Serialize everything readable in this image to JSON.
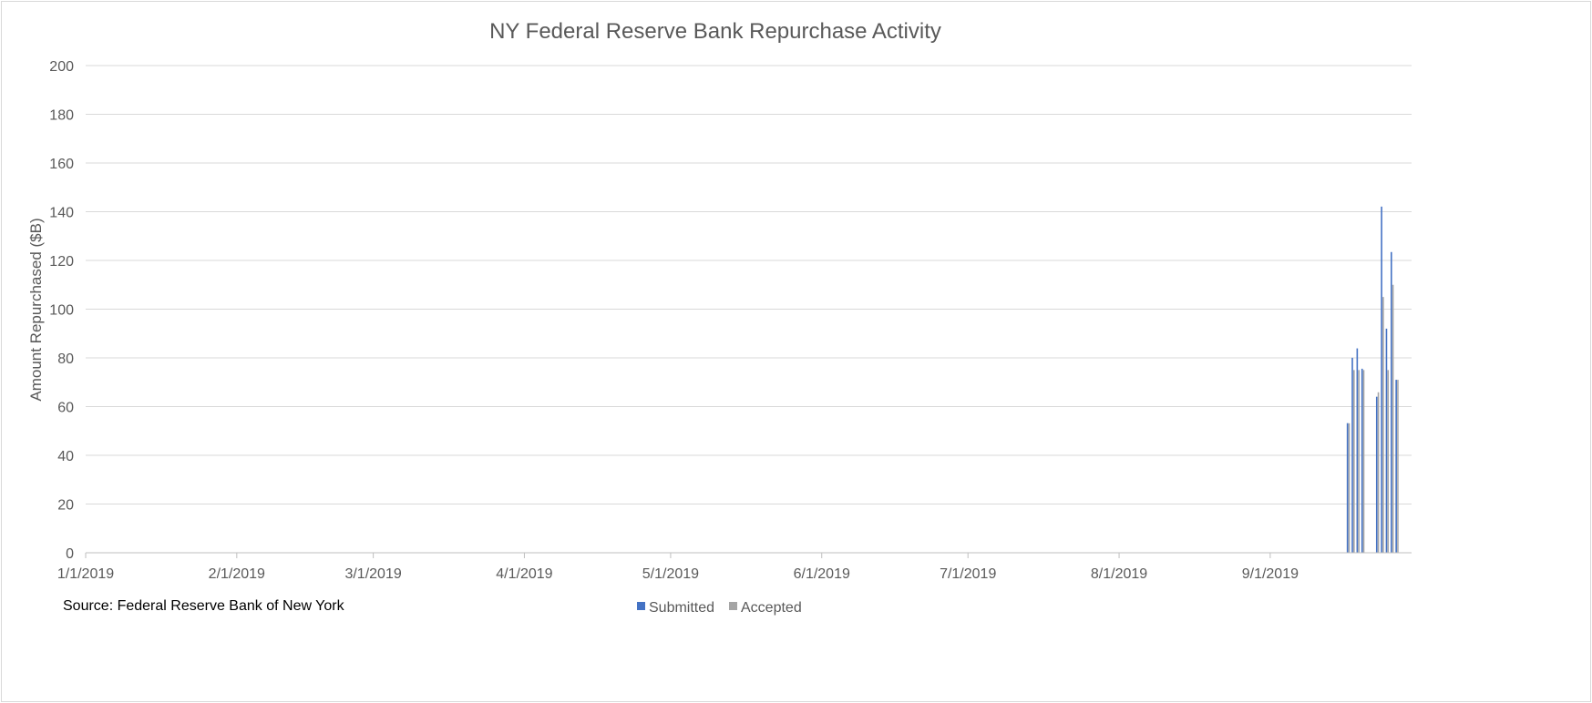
{
  "chart_data": {
    "type": "bar",
    "title": "NY Federal Reserve Bank Repurchase Activity",
    "xlabel": "",
    "ylabel": "Amount Repurchased ($B)",
    "ylim": [
      0,
      200
    ],
    "y_ticks": [
      0,
      20,
      40,
      60,
      80,
      100,
      120,
      140,
      160,
      180,
      200
    ],
    "x_range": [
      "2019-01-01",
      "2019-09-30"
    ],
    "x_tick_dates": [
      "2019-01-01",
      "2019-02-01",
      "2019-03-01",
      "2019-04-01",
      "2019-05-01",
      "2019-06-01",
      "2019-07-01",
      "2019-08-01",
      "2019-09-01"
    ],
    "x_tick_labels": [
      "1/1/2019",
      "2/1/2019",
      "3/1/2019",
      "4/1/2019",
      "5/1/2019",
      "6/1/2019",
      "7/1/2019",
      "8/1/2019",
      "9/1/2019"
    ],
    "grid": true,
    "legend_position": "bottom",
    "series": [
      {
        "name": "Submitted",
        "color": "#4472c4",
        "points": [
          {
            "date": "2019-09-17",
            "value": 53.2
          },
          {
            "date": "2019-09-18",
            "value": 80.05
          },
          {
            "date": "2019-09-19",
            "value": 83.9
          },
          {
            "date": "2019-09-20",
            "value": 75.55
          },
          {
            "date": "2019-09-23",
            "value": 64.05
          },
          {
            "date": "2019-09-24",
            "value": 142.1
          },
          {
            "date": "2019-09-25",
            "value": 92.0
          },
          {
            "date": "2019-09-26",
            "value": 123.45
          },
          {
            "date": "2019-09-27",
            "value": 71.0
          }
        ]
      },
      {
        "name": "Accepted",
        "color": "#a5a5a5",
        "points": [
          {
            "date": "2019-09-17",
            "value": 53.15
          },
          {
            "date": "2019-09-18",
            "value": 75.0
          },
          {
            "date": "2019-09-19",
            "value": 75.0
          },
          {
            "date": "2019-09-20",
            "value": 75.0
          },
          {
            "date": "2019-09-23",
            "value": 65.88
          },
          {
            "date": "2019-09-24",
            "value": 105.0
          },
          {
            "date": "2019-09-25",
            "value": 75.0
          },
          {
            "date": "2019-09-26",
            "value": 110.0
          },
          {
            "date": "2019-09-27",
            "value": 71.0
          }
        ]
      }
    ]
  },
  "source_note": "Source:  Federal Reserve Bank of New York",
  "legend": {
    "submitted_label": "Submitted",
    "accepted_label": "Accepted"
  }
}
